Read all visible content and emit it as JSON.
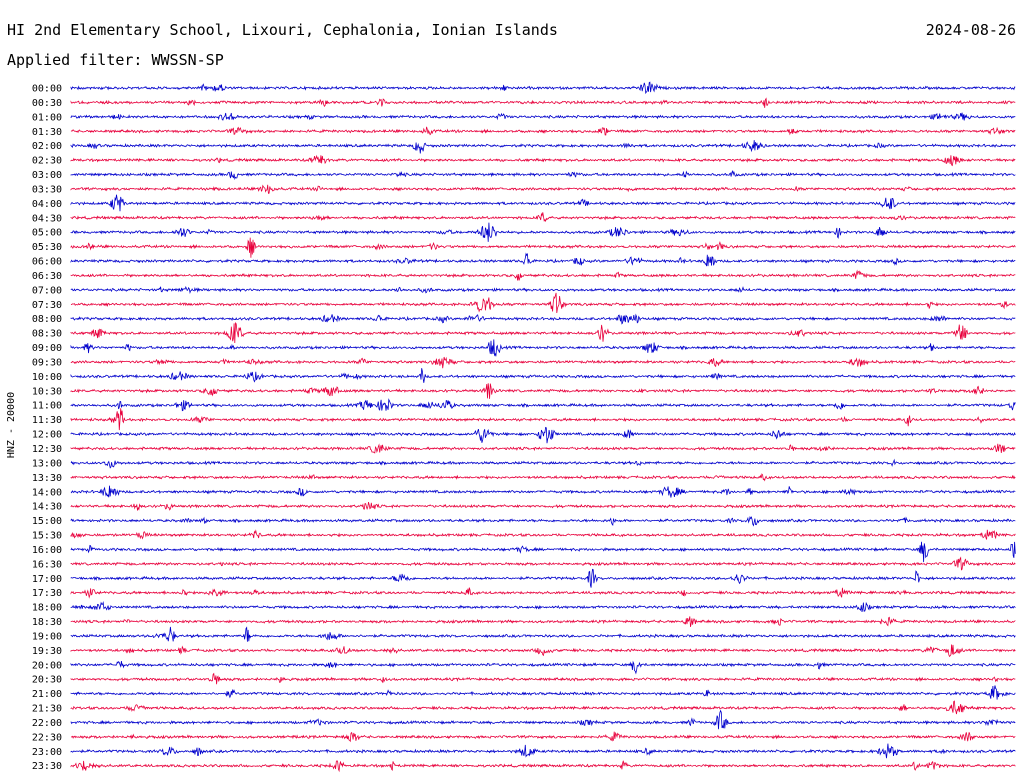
{
  "header": {
    "title": "HI 2nd Elementary School, Lixouri, Cephalonia, Ionian Islands",
    "date": "2024-08-26",
    "filter_label": "Applied filter: WWSSN-SP"
  },
  "chart_data": {
    "type": "line",
    "ylabel": "HNZ - 20000",
    "row_labels": [
      "00:00",
      "00:30",
      "01:00",
      "01:30",
      "02:00",
      "02:30",
      "03:00",
      "03:30",
      "04:00",
      "04:30",
      "05:00",
      "05:30",
      "06:00",
      "06:30",
      "07:00",
      "07:30",
      "08:00",
      "08:30",
      "09:00",
      "09:30",
      "10:00",
      "10:30",
      "11:00",
      "11:30",
      "12:00",
      "12:30",
      "13:00",
      "13:30",
      "14:00",
      "14:30",
      "15:00",
      "15:30",
      "16:00",
      "16:30",
      "17:00",
      "17:30",
      "18:00",
      "18:30",
      "19:00",
      "19:30",
      "20:00",
      "20:30",
      "21:00",
      "21:30",
      "22:00",
      "22:30",
      "23:00",
      "23:30"
    ],
    "colors": [
      "#0000cc",
      "#e8003c"
    ],
    "grid": false,
    "legend": false,
    "minutes_per_row": 30
  }
}
